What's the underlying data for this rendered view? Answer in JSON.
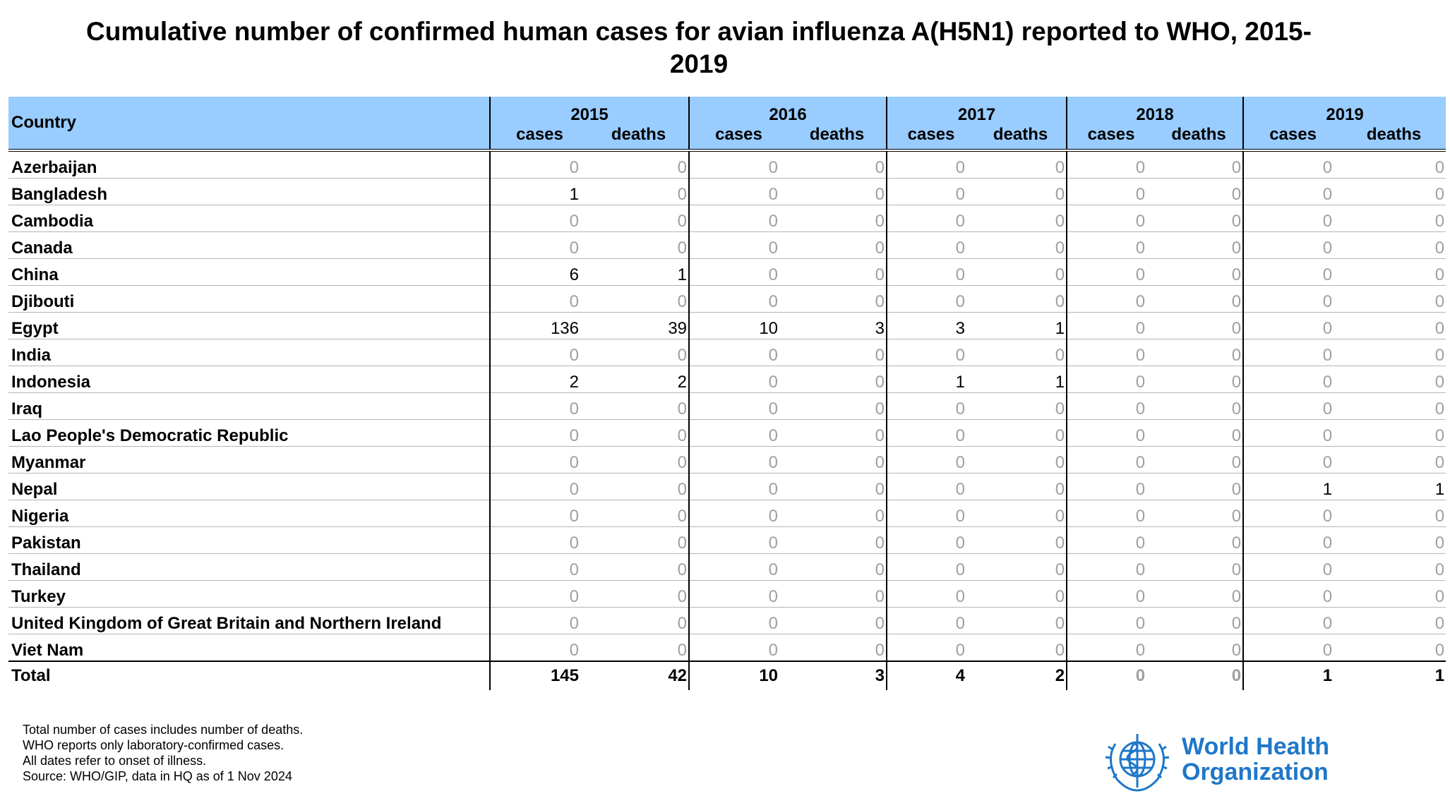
{
  "title_line1": "Cumulative number of confirmed human cases for avian influenza A(H5N1) reported to WHO, 2015-",
  "title_line2": "2019",
  "table": {
    "country_header": "Country",
    "cases_label": "cases",
    "deaths_label": "deaths",
    "years": [
      "2015",
      "2016",
      "2017",
      "2018",
      "2019"
    ],
    "rows": [
      {
        "country": "Azerbaijan",
        "values": [
          "0",
          "0",
          "0",
          "0",
          "0",
          "0",
          "0",
          "0",
          "0",
          "0"
        ]
      },
      {
        "country": "Bangladesh",
        "values": [
          "1",
          "0",
          "0",
          "0",
          "0",
          "0",
          "0",
          "0",
          "0",
          "0"
        ]
      },
      {
        "country": "Cambodia",
        "values": [
          "0",
          "0",
          "0",
          "0",
          "0",
          "0",
          "0",
          "0",
          "0",
          "0"
        ]
      },
      {
        "country": "Canada",
        "values": [
          "0",
          "0",
          "0",
          "0",
          "0",
          "0",
          "0",
          "0",
          "0",
          "0"
        ]
      },
      {
        "country": "China",
        "values": [
          "6",
          "1",
          "0",
          "0",
          "0",
          "0",
          "0",
          "0",
          "0",
          "0"
        ]
      },
      {
        "country": "Djibouti",
        "values": [
          "0",
          "0",
          "0",
          "0",
          "0",
          "0",
          "0",
          "0",
          "0",
          "0"
        ]
      },
      {
        "country": "Egypt",
        "values": [
          "136",
          "39",
          "10",
          "3",
          "3",
          "1",
          "0",
          "0",
          "0",
          "0"
        ]
      },
      {
        "country": "India",
        "values": [
          "0",
          "0",
          "0",
          "0",
          "0",
          "0",
          "0",
          "0",
          "0",
          "0"
        ]
      },
      {
        "country": "Indonesia",
        "values": [
          "2",
          "2",
          "0",
          "0",
          "1",
          "1",
          "0",
          "0",
          "0",
          "0"
        ]
      },
      {
        "country": "Iraq",
        "values": [
          "0",
          "0",
          "0",
          "0",
          "0",
          "0",
          "0",
          "0",
          "0",
          "0"
        ]
      },
      {
        "country": "Lao People's Democratic Republic",
        "values": [
          "0",
          "0",
          "0",
          "0",
          "0",
          "0",
          "0",
          "0",
          "0",
          "0"
        ]
      },
      {
        "country": "Myanmar",
        "values": [
          "0",
          "0",
          "0",
          "0",
          "0",
          "0",
          "0",
          "0",
          "0",
          "0"
        ]
      },
      {
        "country": "Nepal",
        "values": [
          "0",
          "0",
          "0",
          "0",
          "0",
          "0",
          "0",
          "0",
          "1",
          "1"
        ]
      },
      {
        "country": "Nigeria",
        "values": [
          "0",
          "0",
          "0",
          "0",
          "0",
          "0",
          "0",
          "0",
          "0",
          "0"
        ]
      },
      {
        "country": "Pakistan",
        "values": [
          "0",
          "0",
          "0",
          "0",
          "0",
          "0",
          "0",
          "0",
          "0",
          "0"
        ]
      },
      {
        "country": "Thailand",
        "values": [
          "0",
          "0",
          "0",
          "0",
          "0",
          "0",
          "0",
          "0",
          "0",
          "0"
        ]
      },
      {
        "country": "Turkey",
        "values": [
          "0",
          "0",
          "0",
          "0",
          "0",
          "0",
          "0",
          "0",
          "0",
          "0"
        ]
      },
      {
        "country": "United Kingdom of Great Britain and Northern Ireland",
        "values": [
          "0",
          "0",
          "0",
          "0",
          "0",
          "0",
          "0",
          "0",
          "0",
          "0"
        ]
      },
      {
        "country": "Viet Nam",
        "values": [
          "0",
          "0",
          "0",
          "0",
          "0",
          "0",
          "0",
          "0",
          "0",
          "0"
        ]
      }
    ],
    "total": {
      "label": "Total",
      "values": [
        "145",
        "42",
        "10",
        "3",
        "4",
        "2",
        "0",
        "0",
        "1",
        "1"
      ]
    }
  },
  "notes": [
    "Total number of cases includes number of deaths.",
    "WHO reports only laboratory-confirmed cases.",
    "All dates refer to onset of illness.",
    "Source: WHO/GIP, data in HQ as of 1 Nov 2024"
  ],
  "logo": {
    "line1": "World Health",
    "line2": "Organization",
    "icon": "who-emblem-icon",
    "color": "#1f77c8"
  },
  "colors": {
    "header_bg": "#99ccff",
    "zero_text": "#a0a0a0"
  }
}
